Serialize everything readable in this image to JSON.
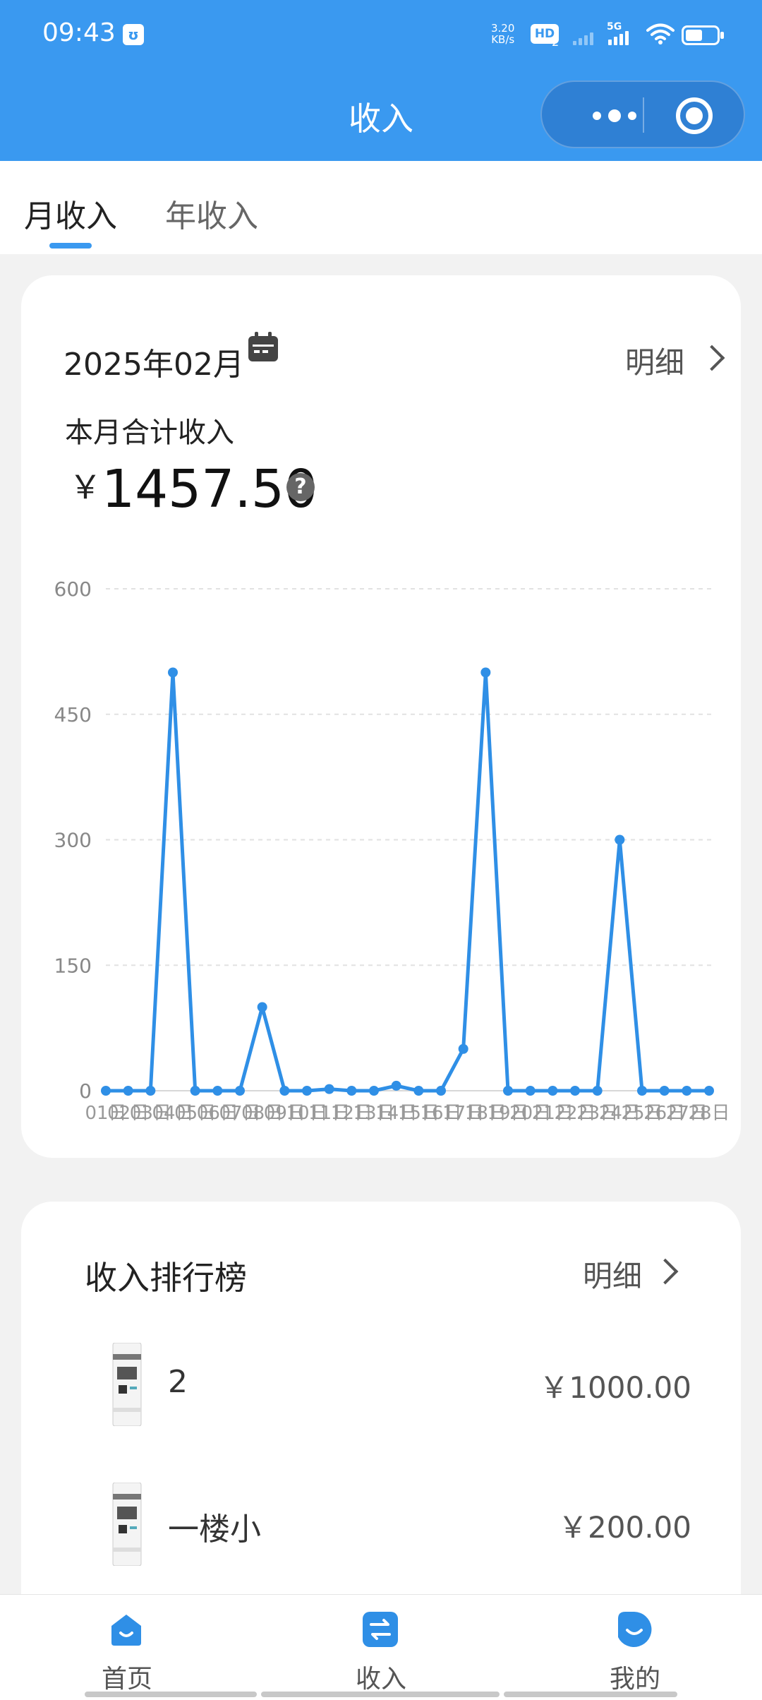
{
  "status_bar": {
    "time": "09:43",
    "app_badge": "ʊ",
    "net_speed_value": "3.20",
    "net_speed_unit": "KB/s",
    "hd_label": "HD",
    "hd_sub": "2",
    "network_label": "5G",
    "battery_level": 0.55
  },
  "header": {
    "title": "收入"
  },
  "tabs": [
    {
      "label": "月收入",
      "active": true
    },
    {
      "label": "年收入",
      "active": false
    }
  ],
  "summary_card": {
    "month": "2025年02月",
    "detail_label": "明细",
    "total_label": "本月合计收入",
    "currency_symbol": "￥",
    "total_value": "1457.50",
    "help_icon": "question-circle-icon"
  },
  "chart_data": {
    "type": "line",
    "y_ticks": [
      "600",
      "450",
      "300",
      "150",
      "0"
    ],
    "ylim": [
      0,
      600
    ],
    "grid": true,
    "color": "#2f8fe6",
    "categories": [
      "01日",
      "02日",
      "03日",
      "04日",
      "05日",
      "06日",
      "07日",
      "08日",
      "09日",
      "10日",
      "11日",
      "12日",
      "13日",
      "14日",
      "15日",
      "16日",
      "17日",
      "18日",
      "19日",
      "20日",
      "21日",
      "22日",
      "23日",
      "24日",
      "25日",
      "26日",
      "27日",
      "28日"
    ],
    "values": [
      0,
      0,
      0,
      500,
      0,
      0,
      0,
      100,
      0,
      0,
      2,
      0,
      0,
      6,
      0,
      0,
      50,
      500,
      0,
      0,
      0,
      0,
      0,
      300,
      0,
      0,
      0,
      0
    ]
  },
  "ranking": {
    "title": "收入排行榜",
    "detail_label": "明细",
    "items": [
      {
        "name": "2",
        "amount": "￥1000.00"
      },
      {
        "name": "一楼小",
        "amount": "￥200.00"
      }
    ]
  },
  "bottom_nav": [
    {
      "label": "首页",
      "icon": "home-icon"
    },
    {
      "label": "收入",
      "icon": "exchange-icon"
    },
    {
      "label": "我的",
      "icon": "profile-icon"
    }
  ]
}
